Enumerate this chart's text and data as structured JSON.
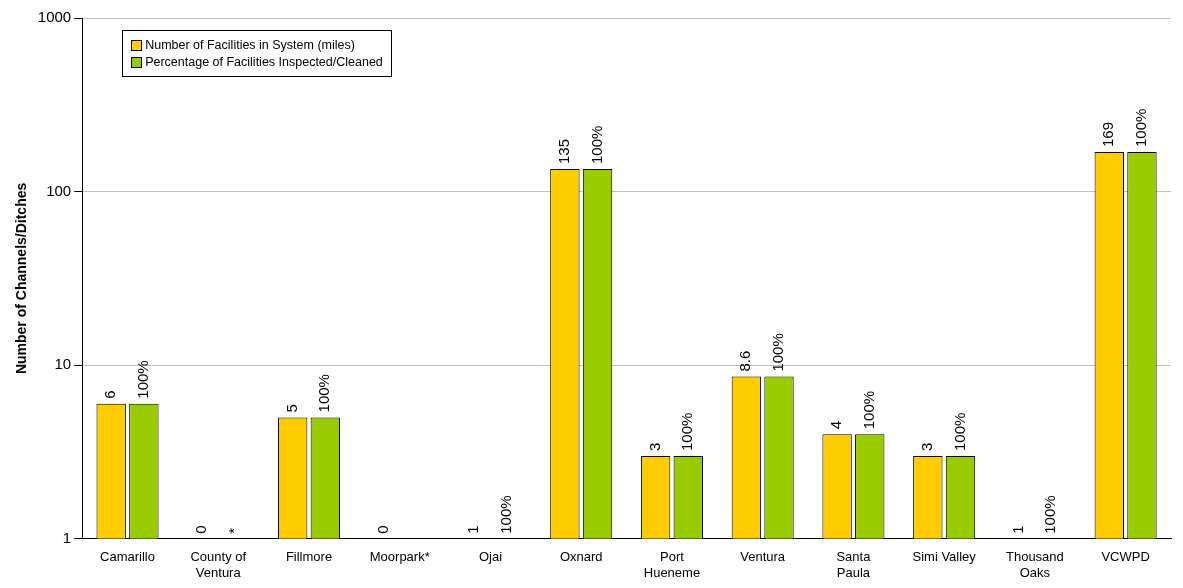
{
  "chart_data": {
    "type": "bar",
    "ylabel": "Number of Channels/Ditches",
    "categories": [
      "Camarillo",
      "County of\nVentura",
      "Fillmore",
      "Moorpark*",
      "Ojai",
      "Oxnard",
      "Port\nHueneme",
      "Ventura",
      "Santa\nPaula",
      "Simi Valley",
      "Thousand\nOaks",
      "VCWPD"
    ],
    "series": [
      {
        "name": "Number of Facilities in System (miles)",
        "color": "#ffcc00",
        "values": [
          6,
          null,
          5,
          null,
          1,
          135,
          3,
          8.6,
          4,
          3,
          1,
          169
        ]
      },
      {
        "name": "Percentage of Facilities Inspected/Cleaned",
        "color": "#99cc00",
        "values": [
          6,
          null,
          5,
          null,
          1,
          135,
          3,
          8.6,
          4,
          3,
          1,
          169
        ]
      }
    ],
    "annotations": [
      {
        "text": "6",
        "x": "Camarillo",
        "y": 6
      },
      {
        "text": "100%",
        "x": "Camarillo",
        "y": 6
      },
      "0",
      "*",
      {
        "text": "5",
        "x": "Fillmore",
        "y": 5
      },
      {
        "text": "100%",
        "x": "Fillmore",
        "y": 5
      },
      "0",
      {
        "text": "1",
        "x": "Ojai",
        "y": 1
      },
      {
        "text": "100%",
        "x": "Ojai",
        "y": 1
      },
      {
        "text": "135",
        "x": "Oxnard",
        "y": 135
      },
      {
        "text": "100%",
        "x": "Oxnard",
        "y": 135
      },
      {
        "text": "3",
        "x": "Port\nHueneme",
        "y": 3
      },
      {
        "text": "100%",
        "x": "Port\nHueneme",
        "y": 3
      },
      {
        "text": "8.6",
        "x": "Ventura",
        "y": 8.6
      },
      {
        "text": "100%",
        "x": "Ventura",
        "y": 8.6
      },
      {
        "text": "4",
        "x": "Santa\nPaula",
        "y": 4
      },
      {
        "text": "100%",
        "x": "Santa\nPaula",
        "y": 4
      },
      {
        "text": "3",
        "x": "Simi Valley",
        "y": 3
      },
      {
        "text": "100%",
        "x": "Simi Valley",
        "y": 3
      },
      {
        "text": "1",
        "x": "Thousand\nOaks",
        "y": 1
      },
      {
        "text": "100%",
        "x": "Thousand\nOaks",
        "y": 1
      },
      {
        "text": "169",
        "x": "VCWPD",
        "y": 169
      },
      {
        "text": "100%",
        "x": "VCWPD",
        "y": 169
      }
    ],
    "log": "y",
    "ylim": [
      1,
      1000
    ],
    "yticks": [
      1,
      10,
      100,
      1000
    ],
    "grid": "y",
    "legend": "top left"
  }
}
